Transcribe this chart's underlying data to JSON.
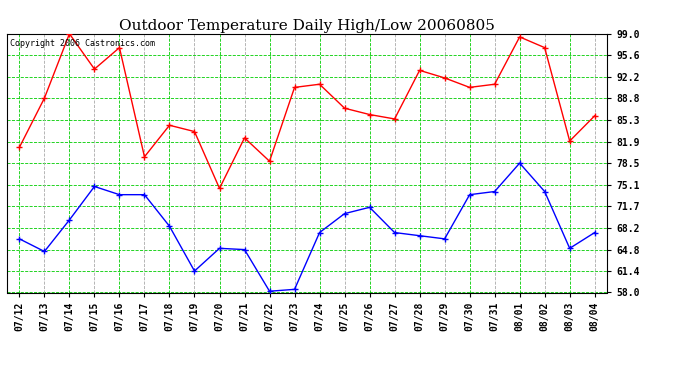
{
  "title": "Outdoor Temperature Daily High/Low 20060805",
  "copyright": "Copyright 2006 Castronics.com",
  "dates": [
    "07/12",
    "07/13",
    "07/14",
    "07/15",
    "07/16",
    "07/17",
    "07/18",
    "07/19",
    "07/20",
    "07/21",
    "07/22",
    "07/23",
    "07/24",
    "07/25",
    "07/26",
    "07/27",
    "07/28",
    "07/29",
    "07/30",
    "07/31",
    "08/01",
    "08/02",
    "08/03",
    "08/04"
  ],
  "high": [
    81.0,
    88.8,
    99.0,
    93.4,
    96.8,
    79.5,
    84.5,
    83.5,
    74.5,
    82.5,
    78.8,
    90.5,
    91.0,
    87.2,
    86.2,
    85.5,
    93.2,
    92.0,
    90.5,
    91.0,
    98.5,
    96.8,
    82.0,
    86.0
  ],
  "low": [
    66.5,
    64.5,
    69.5,
    74.8,
    73.5,
    73.5,
    68.5,
    61.4,
    65.0,
    64.8,
    58.2,
    58.5,
    67.5,
    70.5,
    71.5,
    67.5,
    67.0,
    66.5,
    73.5,
    74.0,
    78.5,
    74.0,
    65.0,
    67.5
  ],
  "high_color": "#ff0000",
  "low_color": "#0000ff",
  "bg_color": "#ffffff",
  "plot_bg_color": "#ffffff",
  "grid_green_color": "#00cc00",
  "grid_gray_color": "#aaaaaa",
  "ymin": 58.0,
  "ymax": 99.0,
  "yticks": [
    58.0,
    61.4,
    64.8,
    68.2,
    71.7,
    75.1,
    78.5,
    81.9,
    85.3,
    88.8,
    92.2,
    95.6,
    99.0
  ],
  "title_fontsize": 11,
  "copyright_fontsize": 6,
  "tick_fontsize": 7
}
